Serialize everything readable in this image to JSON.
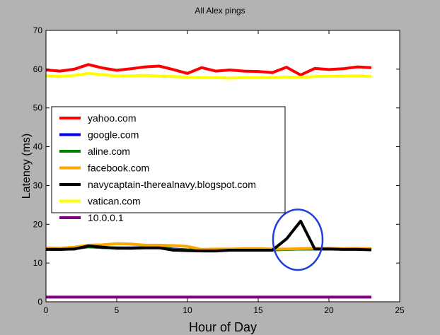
{
  "colors": {
    "background": "#b3b3b3",
    "plot_background": "#ffffff",
    "highlight_circle": "#1f3fe0"
  },
  "chart_data": {
    "type": "line",
    "title": "All Alex pings",
    "xlabel": "Hour of Day",
    "ylabel": "Latency (ms)",
    "xlim": [
      0,
      25
    ],
    "ylim": [
      0,
      70
    ],
    "xticks": [
      "0",
      "5",
      "10",
      "15",
      "20",
      "25"
    ],
    "yticks": [
      "0",
      "10",
      "20",
      "30",
      "40",
      "50",
      "60",
      "70"
    ],
    "grid": false,
    "legend_position": "left",
    "x": [
      0,
      1,
      2,
      3,
      4,
      5,
      6,
      7,
      8,
      9,
      10,
      11,
      12,
      13,
      14,
      15,
      16,
      17,
      18,
      19,
      20,
      21,
      22,
      23
    ],
    "series": [
      {
        "name": "yahoo.com",
        "color": "#ff0000",
        "values": [
          59.8,
          59.5,
          60.0,
          61.2,
          60.3,
          59.7,
          60.1,
          60.6,
          60.8,
          59.9,
          58.9,
          60.4,
          59.5,
          59.8,
          59.5,
          59.4,
          59.1,
          60.5,
          58.5,
          60.2,
          59.9,
          60.1,
          60.6,
          60.4
        ]
      },
      {
        "name": "google.com",
        "color": "#0000ff",
        "values": [
          13.6,
          13.5,
          13.7,
          14.2,
          14.0,
          13.9,
          13.9,
          14.0,
          14.1,
          13.6,
          13.4,
          13.3,
          13.3,
          13.4,
          13.4,
          13.4,
          13.4,
          13.5,
          13.6,
          13.6,
          13.6,
          13.6,
          13.6,
          13.5
        ]
      },
      {
        "name": "aline.com",
        "color": "#008000",
        "values": [
          13.5,
          13.5,
          13.7,
          14.2,
          14.0,
          13.9,
          13.8,
          14.0,
          14.0,
          13.5,
          13.4,
          13.3,
          13.3,
          13.4,
          13.4,
          13.4,
          13.4,
          13.5,
          13.6,
          13.6,
          13.6,
          13.6,
          13.6,
          13.5
        ]
      },
      {
        "name": "facebook.com",
        "color": "#ffa500",
        "values": [
          13.9,
          13.8,
          14.1,
          14.6,
          14.7,
          15.0,
          14.9,
          14.6,
          14.6,
          14.5,
          14.3,
          13.5,
          13.6,
          13.6,
          13.7,
          13.7,
          13.6,
          13.6,
          13.7,
          13.8,
          13.8,
          13.7,
          13.8,
          13.7
        ]
      },
      {
        "name": "navycaptain-therealnavy.blogspot.com",
        "color": "#000000",
        "values": [
          13.5,
          13.5,
          13.6,
          14.4,
          14.1,
          13.8,
          13.8,
          13.9,
          13.9,
          13.3,
          13.2,
          13.1,
          13.1,
          13.3,
          13.3,
          13.3,
          13.3,
          16.2,
          20.8,
          13.6,
          13.6,
          13.5,
          13.5,
          13.4
        ]
      },
      {
        "name": "vatican.com",
        "color": "#ffff00",
        "values": [
          58.3,
          58.1,
          58.4,
          58.9,
          58.6,
          58.2,
          58.3,
          58.4,
          58.2,
          58.1,
          57.9,
          57.8,
          57.8,
          57.7,
          57.8,
          57.8,
          57.8,
          58.0,
          57.9,
          58.1,
          58.2,
          58.2,
          58.3,
          58.1
        ]
      },
      {
        "name": "10.0.0.1",
        "color": "#800080",
        "values": [
          1.2,
          1.2,
          1.2,
          1.2,
          1.2,
          1.2,
          1.2,
          1.2,
          1.2,
          1.2,
          1.2,
          1.2,
          1.2,
          1.2,
          1.2,
          1.2,
          1.2,
          1.2,
          1.2,
          1.2,
          1.2,
          1.2,
          1.2,
          1.2
        ]
      }
    ],
    "annotations": [
      {
        "type": "ellipse",
        "center": [
          17.8,
          16.0
        ],
        "radius": [
          1.75,
          7.8
        ],
        "color": "#1f3fe0"
      }
    ]
  }
}
